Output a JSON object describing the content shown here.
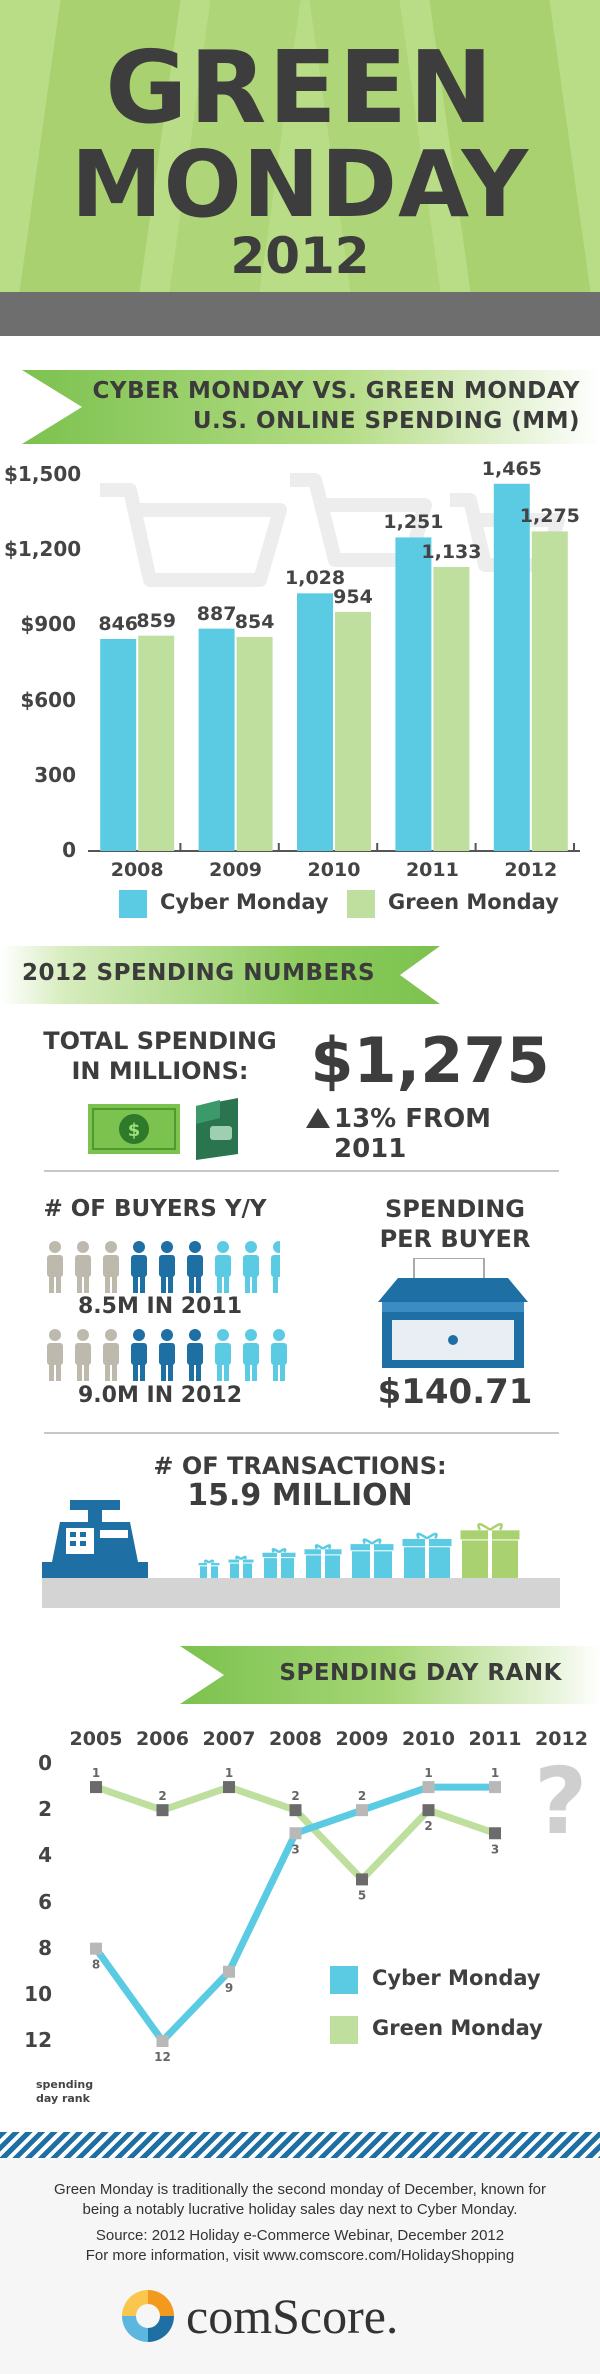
{
  "header": {
    "title_line1": "GREEN",
    "title_line2": "MONDAY",
    "title_line3": "2012"
  },
  "colors": {
    "cyber": "#5bcbe3",
    "green": "#bfdf9e",
    "dark_blue": "#1e6fa3",
    "gray_person": "#bdb9ad",
    "header_bg": "#b9dc86",
    "ribbon": "#7cc24f"
  },
  "spending_section": {
    "ribbon_line1": "CYBER MONDAY VS. GREEN MONDAY",
    "ribbon_line2": "U.S. ONLINE SPENDING (MM)"
  },
  "chart_data": [
    {
      "type": "bar",
      "categories": [
        "2008",
        "2009",
        "2010",
        "2011",
        "2012"
      ],
      "series": [
        {
          "name": "Cyber Monday",
          "values": [
            846,
            887,
            1028,
            1251,
            1465
          ],
          "labels": [
            "846",
            "887",
            "1,028",
            "1,251",
            "1,465"
          ]
        },
        {
          "name": "Green Monday",
          "values": [
            859,
            854,
            954,
            1133,
            1275
          ],
          "labels": [
            "859",
            "854",
            "954",
            "1,133",
            "1,275"
          ]
        }
      ],
      "yticks": [
        "0",
        "300",
        "$600",
        "$900",
        "$1,200",
        "$1,500"
      ],
      "ytick_values": [
        0,
        300,
        600,
        900,
        1200,
        1500
      ],
      "ylim": [
        0,
        1500
      ],
      "legend_position": "bottom"
    },
    {
      "type": "line",
      "x": [
        "2005",
        "2006",
        "2007",
        "2008",
        "2009",
        "2010",
        "2011",
        "2012"
      ],
      "series": [
        {
          "name": "Cyber Monday",
          "values": [
            8,
            12,
            9,
            3,
            2,
            1,
            1,
            null
          ]
        },
        {
          "name": "Green Monday",
          "values": [
            1,
            2,
            1,
            2,
            5,
            2,
            3,
            null
          ]
        }
      ],
      "yticks": [
        "0",
        "2",
        "4",
        "6",
        "8",
        "10",
        "12"
      ],
      "ytick_values": [
        0,
        2,
        4,
        6,
        8,
        10,
        12
      ],
      "ylim": [
        0,
        12
      ],
      "y_inverted": true,
      "ylabel_line1": "spending",
      "ylabel_line2": "day rank",
      "unknown_marker": "?",
      "legend_position": "bottom-right"
    }
  ],
  "numbers_section": {
    "ribbon_label": "2012 SPENDING NUMBERS",
    "total_label_line1": "TOTAL SPENDING",
    "total_label_line2": "IN MILLIONS:",
    "total_value": "$1,275",
    "change": "13% FROM 2011",
    "buyers_label": "# OF BUYERS Y/Y",
    "buyers_2011": "8.5M IN 2011",
    "buyers_2012": "9.0M IN 2012",
    "per_buyer_line1": "SPENDING",
    "per_buyer_line2": "PER BUYER",
    "per_buyer_value": "$140.71",
    "transactions_label": "# OF TRANSACTIONS:",
    "transactions_value": "15.9 MILLION",
    "money_icon": "dollar-bill-icon",
    "wallet_icon": "wallet-icon",
    "register_icon": "cash-register-icon",
    "gift_icon": "gift-icon"
  },
  "rank_section": {
    "ribbon_label": "SPENDING DAY RANK"
  },
  "footer": {
    "line1": "Green Monday is traditionally the second monday of December, known for",
    "line2": "being a notably lucrative holiday sales day next to Cyber Monday.",
    "line3": "Source: 2012 Holiday e-Commerce Webinar, December 2012",
    "line4": "For more information, visit www.comscore.com/HolidayShopping",
    "logo_text": "comScore."
  }
}
